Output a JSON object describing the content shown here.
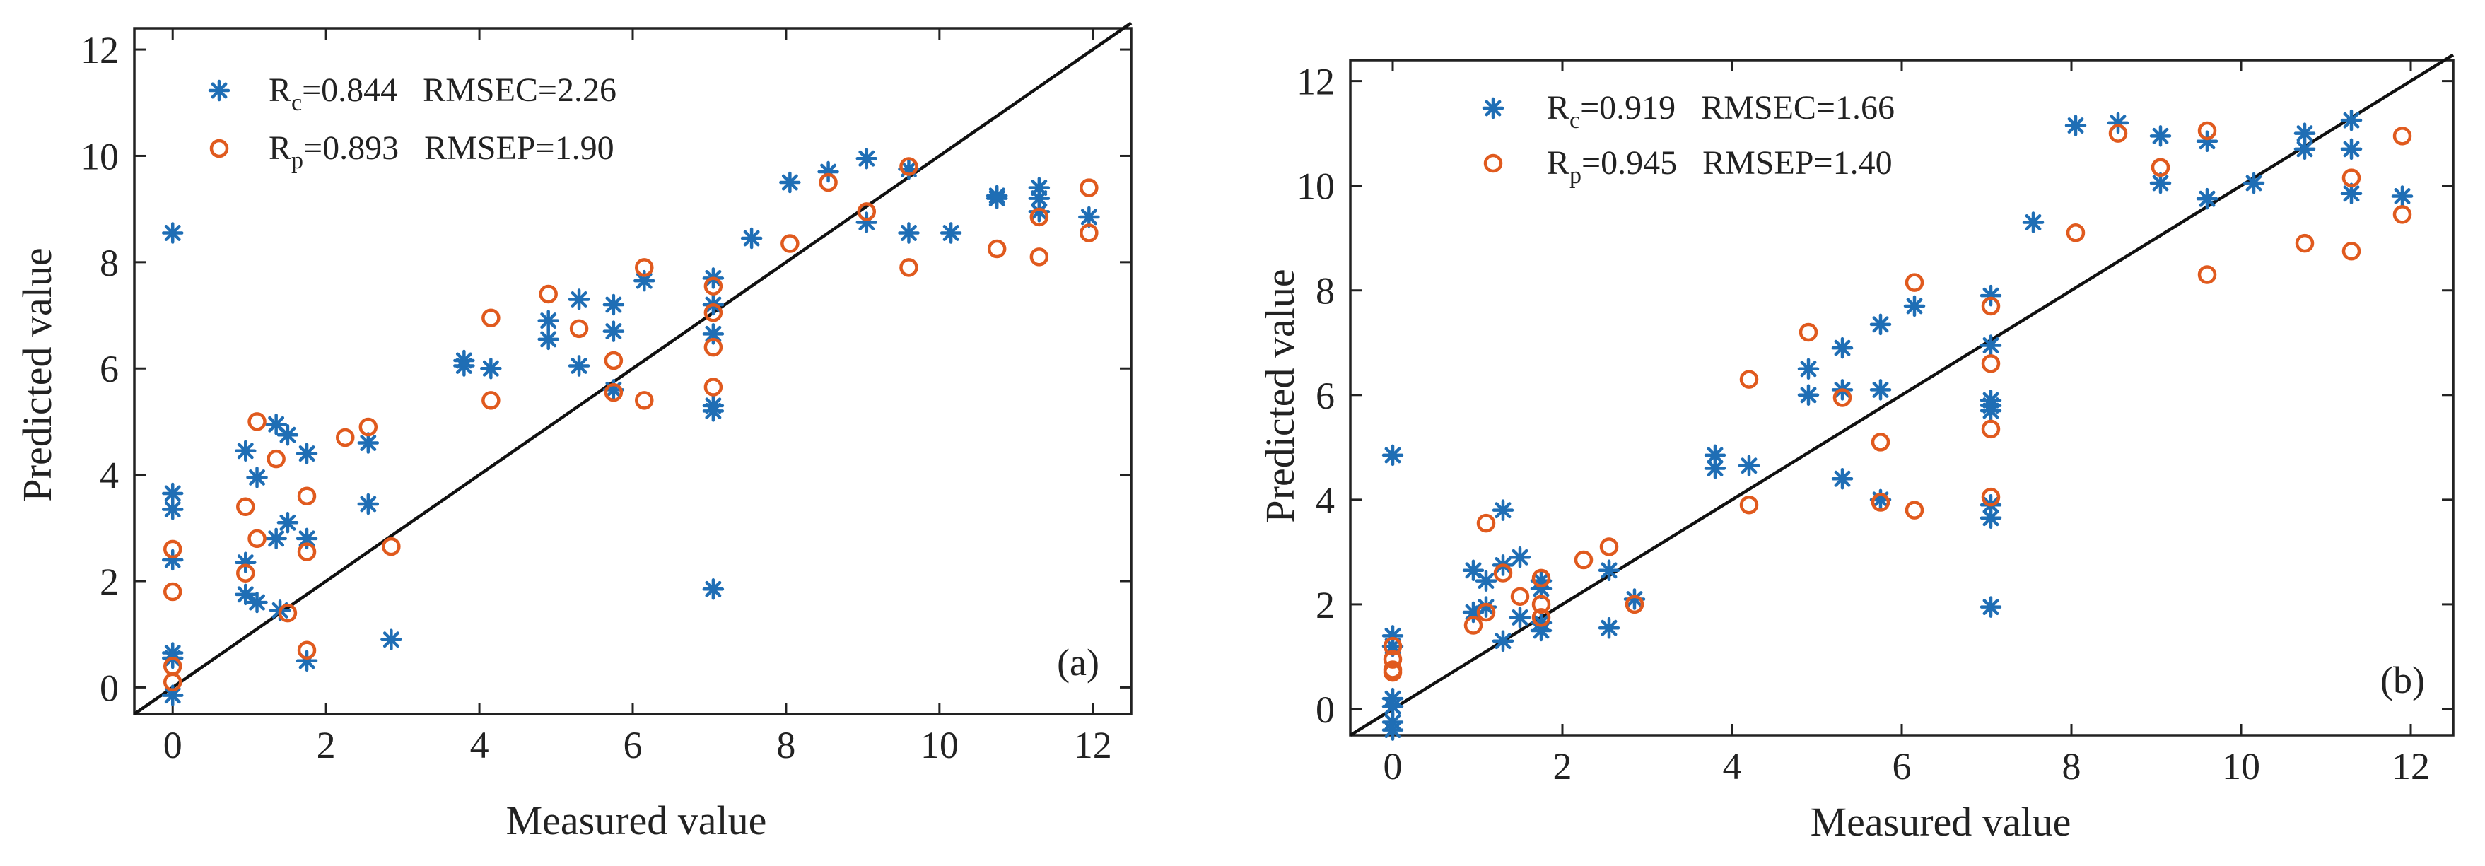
{
  "chart_data": [
    {
      "type": "scatter",
      "panel_label": "(a)",
      "xlabel": "Measured value",
      "ylabel": "Predicted value",
      "xlim": [
        -0.5,
        12.5
      ],
      "ylim": [
        -0.5,
        12.4
      ],
      "xticks": [
        0,
        2,
        4,
        6,
        8,
        10,
        12
      ],
      "yticks": [
        0,
        2,
        4,
        6,
        8,
        10,
        12
      ],
      "reference_line": [
        [
          -0.5,
          -0.5
        ],
        [
          12.5,
          12.5
        ]
      ],
      "legend": [
        {
          "series": "calibration",
          "prefix": "R",
          "sub": "c",
          "text": "=0.844   RMSEC=2.26"
        },
        {
          "series": "prediction",
          "prefix": "R",
          "sub": "p",
          "text": "=0.893   RMSEP=1.90"
        }
      ],
      "series": [
        {
          "name": "calibration",
          "marker": "asterisk",
          "color": "#1f6eb5",
          "points": [
            [
              0,
              8.55
            ],
            [
              0,
              3.65
            ],
            [
              0,
              3.35
            ],
            [
              0,
              2.4
            ],
            [
              0,
              0.65
            ],
            [
              0,
              0.55
            ],
            [
              0,
              -0.15
            ],
            [
              0.95,
              4.45
            ],
            [
              0.95,
              2.35
            ],
            [
              0.95,
              1.75
            ],
            [
              1.1,
              3.95
            ],
            [
              1.1,
              1.6
            ],
            [
              1.35,
              4.95
            ],
            [
              1.35,
              2.8
            ],
            [
              1.4,
              1.45
            ],
            [
              1.5,
              4.75
            ],
            [
              1.5,
              3.1
            ],
            [
              1.75,
              4.4
            ],
            [
              1.75,
              2.8
            ],
            [
              1.75,
              0.5
            ],
            [
              2.55,
              4.6
            ],
            [
              2.55,
              3.45
            ],
            [
              2.85,
              0.9
            ],
            [
              3.8,
              6.15
            ],
            [
              3.8,
              6.05
            ],
            [
              4.15,
              6.0
            ],
            [
              4.9,
              6.9
            ],
            [
              4.9,
              6.55
            ],
            [
              5.3,
              7.3
            ],
            [
              5.3,
              6.05
            ],
            [
              5.75,
              7.2
            ],
            [
              5.75,
              6.7
            ],
            [
              5.75,
              5.6
            ],
            [
              6.15,
              7.65
            ],
            [
              7.05,
              7.7
            ],
            [
              7.05,
              7.2
            ],
            [
              7.05,
              6.65
            ],
            [
              7.05,
              5.3
            ],
            [
              7.05,
              5.2
            ],
            [
              7.05,
              1.85
            ],
            [
              7.55,
              8.45
            ],
            [
              8.05,
              9.5
            ],
            [
              8.55,
              9.7
            ],
            [
              9.05,
              9.95
            ],
            [
              9.05,
              8.75
            ],
            [
              9.6,
              9.75
            ],
            [
              9.6,
              8.55
            ],
            [
              10.15,
              8.55
            ],
            [
              10.75,
              9.25
            ],
            [
              10.75,
              9.2
            ],
            [
              11.3,
              9.4
            ],
            [
              11.3,
              9.2
            ],
            [
              11.3,
              8.95
            ],
            [
              11.95,
              8.85
            ]
          ]
        },
        {
          "name": "prediction",
          "marker": "circle",
          "color": "#e05a1e",
          "points": [
            [
              0,
              2.6
            ],
            [
              0,
              1.8
            ],
            [
              0,
              0.4
            ],
            [
              0,
              0.1
            ],
            [
              0.95,
              3.4
            ],
            [
              0.95,
              2.15
            ],
            [
              1.1,
              5.0
            ],
            [
              1.1,
              2.8
            ],
            [
              1.35,
              4.3
            ],
            [
              1.5,
              1.4
            ],
            [
              1.75,
              3.6
            ],
            [
              1.75,
              2.55
            ],
            [
              1.75,
              0.7
            ],
            [
              2.25,
              4.7
            ],
            [
              2.55,
              4.9
            ],
            [
              2.85,
              2.65
            ],
            [
              4.15,
              6.95
            ],
            [
              4.15,
              5.4
            ],
            [
              4.9,
              7.4
            ],
            [
              5.3,
              6.75
            ],
            [
              5.75,
              6.15
            ],
            [
              5.75,
              5.55
            ],
            [
              6.15,
              7.9
            ],
            [
              6.15,
              5.4
            ],
            [
              7.05,
              7.55
            ],
            [
              7.05,
              7.05
            ],
            [
              7.05,
              6.4
            ],
            [
              7.05,
              5.65
            ],
            [
              8.05,
              8.35
            ],
            [
              8.55,
              9.5
            ],
            [
              9.05,
              8.95
            ],
            [
              9.6,
              9.8
            ],
            [
              9.6,
              7.9
            ],
            [
              10.75,
              8.25
            ],
            [
              11.3,
              8.85
            ],
            [
              11.3,
              8.1
            ],
            [
              11.95,
              9.4
            ],
            [
              11.95,
              8.55
            ]
          ]
        }
      ]
    },
    {
      "type": "scatter",
      "panel_label": "(b)",
      "xlabel": "Measured value",
      "ylabel": "Predicted value",
      "xlim": [
        -0.5,
        12.5
      ],
      "ylim": [
        -0.5,
        12.4
      ],
      "xticks": [
        0,
        2,
        4,
        6,
        8,
        10,
        12
      ],
      "yticks": [
        0,
        2,
        4,
        6,
        8,
        10,
        12
      ],
      "reference_line": [
        [
          -0.5,
          -0.5
        ],
        [
          12.5,
          12.5
        ]
      ],
      "legend": [
        {
          "series": "calibration",
          "prefix": "R",
          "sub": "c",
          "text": "=0.919   RMSEC=1.66"
        },
        {
          "series": "prediction",
          "prefix": "R",
          "sub": "p",
          "text": "=0.945   RMSEP=1.40"
        }
      ],
      "series": [
        {
          "name": "calibration",
          "marker": "asterisk",
          "color": "#1f6eb5",
          "points": [
            [
              0,
              4.85
            ],
            [
              0,
              1.4
            ],
            [
              0,
              1.2
            ],
            [
              0,
              0.2
            ],
            [
              0,
              0.05
            ],
            [
              0,
              -0.25
            ],
            [
              0,
              -0.4
            ],
            [
              0.95,
              2.65
            ],
            [
              0.95,
              1.85
            ],
            [
              1.1,
              2.45
            ],
            [
              1.1,
              1.95
            ],
            [
              1.3,
              3.8
            ],
            [
              1.3,
              2.75
            ],
            [
              1.3,
              1.3
            ],
            [
              1.5,
              2.9
            ],
            [
              1.5,
              1.75
            ],
            [
              1.75,
              2.45
            ],
            [
              1.75,
              2.3
            ],
            [
              1.75,
              1.65
            ],
            [
              1.75,
              1.5
            ],
            [
              2.55,
              2.65
            ],
            [
              2.55,
              1.55
            ],
            [
              2.85,
              2.1
            ],
            [
              3.8,
              4.85
            ],
            [
              3.8,
              4.6
            ],
            [
              4.2,
              4.65
            ],
            [
              4.9,
              6.5
            ],
            [
              4.9,
              6.0
            ],
            [
              5.3,
              6.9
            ],
            [
              5.3,
              6.1
            ],
            [
              5.3,
              4.4
            ],
            [
              5.75,
              7.35
            ],
            [
              5.75,
              6.1
            ],
            [
              5.75,
              4.0
            ],
            [
              6.15,
              7.7
            ],
            [
              7.05,
              7.9
            ],
            [
              7.05,
              6.95
            ],
            [
              7.05,
              5.9
            ],
            [
              7.05,
              5.8
            ],
            [
              7.05,
              5.7
            ],
            [
              7.05,
              3.9
            ],
            [
              7.05,
              3.65
            ],
            [
              7.05,
              1.95
            ],
            [
              7.55,
              9.3
            ],
            [
              8.05,
              11.15
            ],
            [
              8.55,
              11.2
            ],
            [
              9.05,
              10.95
            ],
            [
              9.05,
              10.05
            ],
            [
              9.6,
              10.85
            ],
            [
              9.6,
              9.75
            ],
            [
              10.15,
              10.05
            ],
            [
              10.75,
              11.0
            ],
            [
              10.75,
              10.7
            ],
            [
              11.3,
              11.25
            ],
            [
              11.3,
              10.7
            ],
            [
              11.3,
              9.85
            ],
            [
              11.9,
              9.8
            ]
          ]
        },
        {
          "name": "prediction",
          "marker": "circle",
          "color": "#e05a1e",
          "points": [
            [
              0,
              1.2
            ],
            [
              0,
              0.95
            ],
            [
              0,
              0.75
            ],
            [
              0,
              0.7
            ],
            [
              0.95,
              1.6
            ],
            [
              1.1,
              3.55
            ],
            [
              1.1,
              1.85
            ],
            [
              1.3,
              2.6
            ],
            [
              1.5,
              2.15
            ],
            [
              1.75,
              2.5
            ],
            [
              1.75,
              2.0
            ],
            [
              1.75,
              1.75
            ],
            [
              2.25,
              2.85
            ],
            [
              2.55,
              3.1
            ],
            [
              2.85,
              2.0
            ],
            [
              4.2,
              6.3
            ],
            [
              4.2,
              3.9
            ],
            [
              4.9,
              7.2
            ],
            [
              5.3,
              5.95
            ],
            [
              5.75,
              5.1
            ],
            [
              5.75,
              3.95
            ],
            [
              6.15,
              8.15
            ],
            [
              6.15,
              3.8
            ],
            [
              7.05,
              7.7
            ],
            [
              7.05,
              6.6
            ],
            [
              7.05,
              5.35
            ],
            [
              7.05,
              4.05
            ],
            [
              8.05,
              9.1
            ],
            [
              8.55,
              11.0
            ],
            [
              9.05,
              10.35
            ],
            [
              9.6,
              11.05
            ],
            [
              9.6,
              8.3
            ],
            [
              10.75,
              8.9
            ],
            [
              11.3,
              10.15
            ],
            [
              11.3,
              8.75
            ],
            [
              11.9,
              10.95
            ],
            [
              11.9,
              9.45
            ]
          ]
        }
      ]
    }
  ]
}
